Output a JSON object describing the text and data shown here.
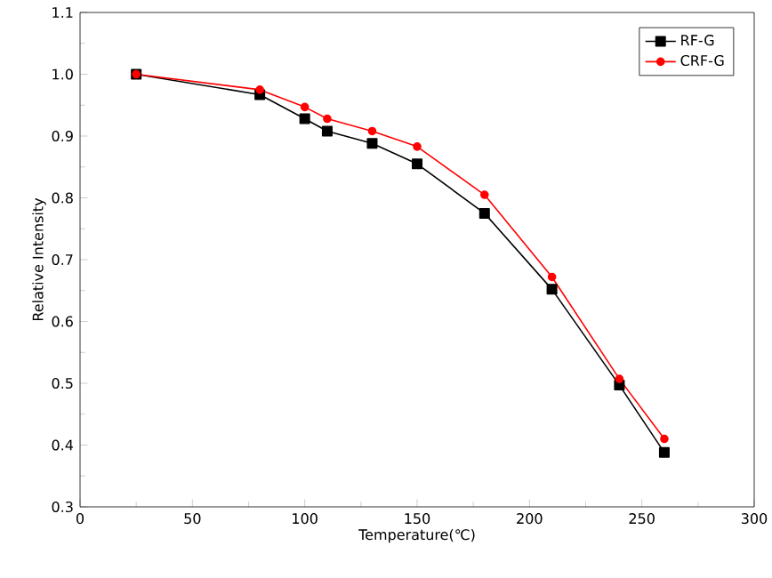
{
  "chart_data": {
    "type": "line",
    "xlabel": "Temperature(℃)",
    "ylabel": "Relative Intensity",
    "x": [
      25,
      80,
      100,
      110,
      130,
      150,
      180,
      210,
      240,
      260
    ],
    "series": [
      {
        "name": "RF-G",
        "color": "#000000",
        "marker": "square",
        "values": [
          1.0,
          0.967,
          0.928,
          0.908,
          0.888,
          0.855,
          0.775,
          0.652,
          0.497,
          0.388
        ]
      },
      {
        "name": "CRF-G",
        "color": "#ff0000",
        "marker": "circle",
        "values": [
          1.0,
          0.975,
          0.947,
          0.928,
          0.908,
          0.883,
          0.805,
          0.672,
          0.507,
          0.41
        ]
      }
    ],
    "xlim": [
      0,
      300
    ],
    "ylim": [
      0.3,
      1.1
    ],
    "xticks": [
      0,
      50,
      100,
      150,
      200,
      250,
      300
    ],
    "yticks": [
      {
        "value": 0.3,
        "label": "0.3"
      },
      {
        "value": 0.4,
        "label": "0.4"
      },
      {
        "value": 0.5,
        "label": "0.5"
      },
      {
        "value": 0.6,
        "label": "0.6"
      },
      {
        "value": 0.7,
        "label": "0.7"
      },
      {
        "value": 0.8,
        "label": "0.8"
      },
      {
        "value": 0.9,
        "label": "0.9"
      },
      {
        "value": 1.0,
        "label": "1.0"
      },
      {
        "value": 1.1,
        "label": "1.1"
      }
    ],
    "legend": "top right",
    "grid": false,
    "line_style": "solid"
  }
}
